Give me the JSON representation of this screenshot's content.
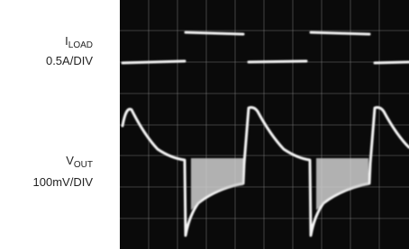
{
  "labels": [
    {
      "symbol": "I",
      "subscript": "LOAD",
      "scale": "0.5A/DIV"
    },
    {
      "symbol": "V",
      "subscript": "OUT",
      "scale": "100mV/DIV"
    }
  ]
}
